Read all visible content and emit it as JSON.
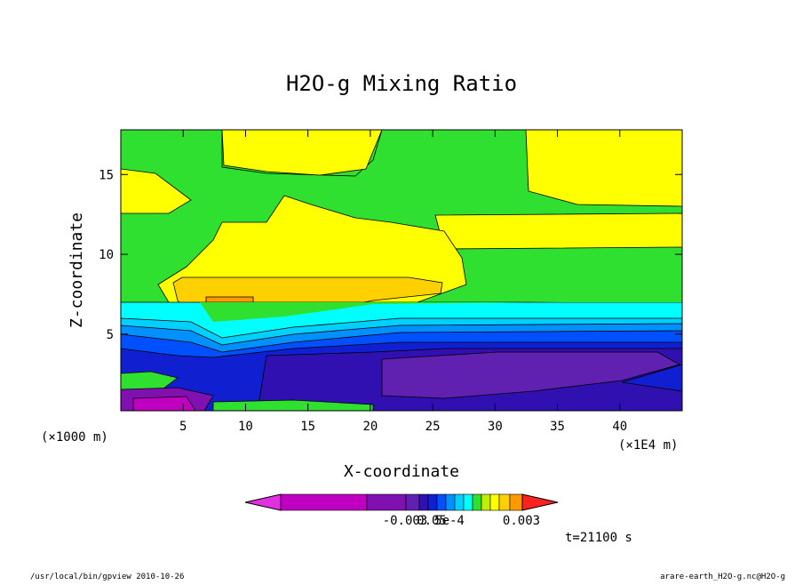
{
  "chart_data": {
    "type": "contour",
    "title": "H2O-g Mixing Ratio",
    "x_label": "X-coordinate",
    "y_label": "Z-coordinate",
    "x_unit": "(×1000 m)",
    "x_unit_right": "(×1E4 m)",
    "xlim": [
      0,
      45
    ],
    "xticks": [
      5,
      10,
      15,
      20,
      25,
      30,
      35,
      40
    ],
    "ylim": [
      0.2,
      17.8
    ],
    "yticks": [
      5,
      10,
      15
    ],
    "colorbar_colors": [
      "#e030e0",
      "#c000c0",
      "#8010b0",
      "#6020b0",
      "#3010b0",
      "#1020d0",
      "#0050ff",
      "#0090ff",
      "#00d0ff",
      "#00ffff",
      "#30e030",
      "#c0f000",
      "#ffff00",
      "#ffd000",
      "#ff9900",
      "#ff2020"
    ],
    "colorbar_labels": [
      "-0.003",
      "0.05",
      "5e-4",
      "0.003"
    ],
    "time_label": "t=21100 s",
    "footer_left": "/usr/local/bin/gpview  2010-10-26",
    "footer_right": "arare-earth_H2O-g.nc@H2O-g"
  }
}
